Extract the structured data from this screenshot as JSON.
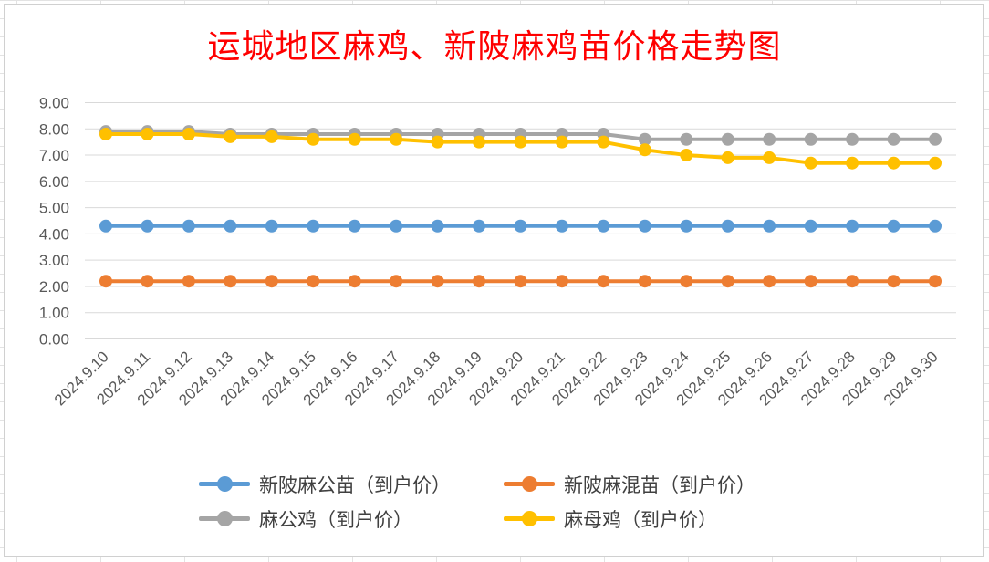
{
  "chart_data": {
    "type": "line",
    "title": "运城地区麻鸡、新陂麻鸡苗价格走势图",
    "x": [
      "2024.9.10",
      "2024.9.11",
      "2024.9.12",
      "2024.9.13",
      "2024.9.14",
      "2024.9.15",
      "2024.9.16",
      "2024.9.17",
      "2024.9.18",
      "2024.9.19",
      "2024.9.20",
      "2024.9.21",
      "2024.9.22",
      "2024.9.23",
      "2024.9.24",
      "2024.9.25",
      "2024.9.26",
      "2024.9.27",
      "2024.9.28",
      "2024.9.29",
      "2024.9.30"
    ],
    "y_ticks": [
      "0.00",
      "1.00",
      "2.00",
      "3.00",
      "4.00",
      "5.00",
      "6.00",
      "7.00",
      "8.00",
      "9.00"
    ],
    "ylim": [
      0,
      9
    ],
    "grid": true,
    "legend_position": "bottom",
    "series": [
      {
        "name": "新陂麻公苗（到户价）",
        "color": "#5b9bd5",
        "values": [
          4.3,
          4.3,
          4.3,
          4.3,
          4.3,
          4.3,
          4.3,
          4.3,
          4.3,
          4.3,
          4.3,
          4.3,
          4.3,
          4.3,
          4.3,
          4.3,
          4.3,
          4.3,
          4.3,
          4.3,
          4.3
        ]
      },
      {
        "name": "新陂麻混苗（到户价）",
        "color": "#ed7d31",
        "values": [
          2.2,
          2.2,
          2.2,
          2.2,
          2.2,
          2.2,
          2.2,
          2.2,
          2.2,
          2.2,
          2.2,
          2.2,
          2.2,
          2.2,
          2.2,
          2.2,
          2.2,
          2.2,
          2.2,
          2.2,
          2.2
        ]
      },
      {
        "name": "麻公鸡（到户价）",
        "color": "#a5a5a5",
        "values": [
          7.9,
          7.9,
          7.9,
          7.8,
          7.8,
          7.8,
          7.8,
          7.8,
          7.8,
          7.8,
          7.8,
          7.8,
          7.8,
          7.6,
          7.6,
          7.6,
          7.6,
          7.6,
          7.6,
          7.6,
          7.6
        ]
      },
      {
        "name": "麻母鸡（到户价）",
        "color": "#ffc000",
        "values": [
          7.8,
          7.8,
          7.8,
          7.7,
          7.7,
          7.6,
          7.6,
          7.6,
          7.5,
          7.5,
          7.5,
          7.5,
          7.5,
          7.2,
          7.0,
          6.9,
          6.9,
          6.7,
          6.7,
          6.7,
          6.7
        ]
      }
    ]
  }
}
